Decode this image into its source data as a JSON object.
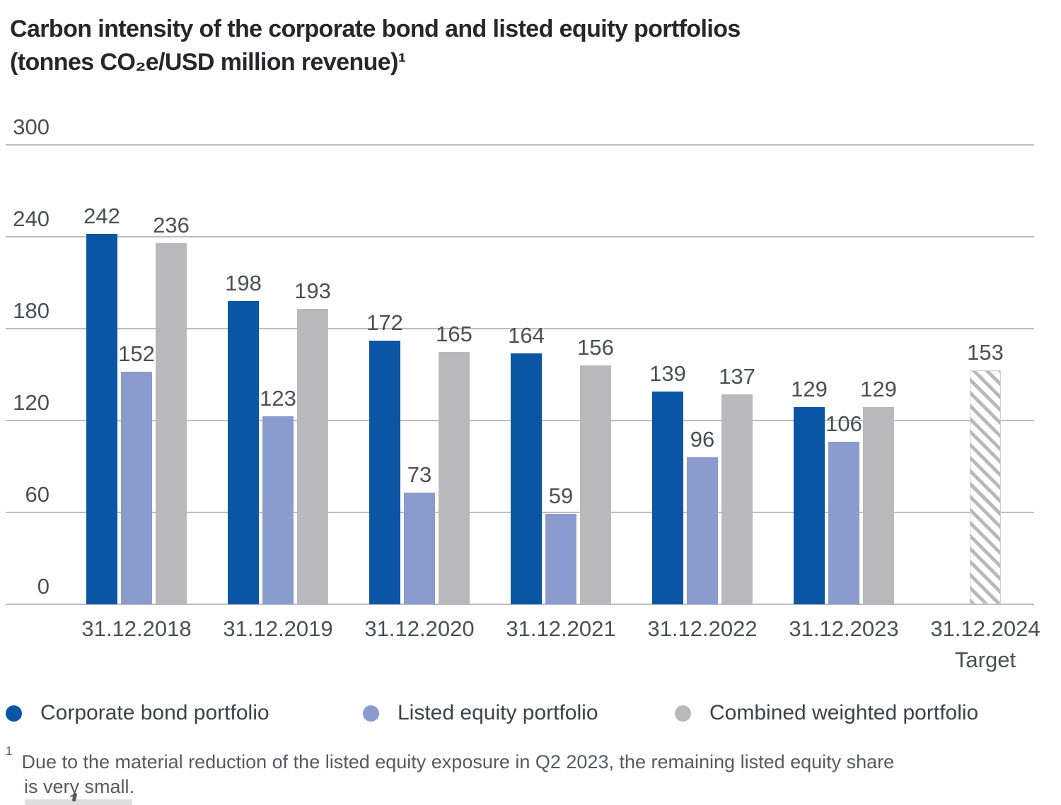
{
  "title": {
    "line1": "Carbon intensity of the corporate bond and listed equity portfolios",
    "line2": "(tonnes CO₂e/USD million revenue)¹"
  },
  "chart_data": {
    "type": "bar",
    "title": "Carbon intensity of the corporate bond and listed equity portfolios",
    "unit_label": "(tonnes CO₂e/USD million revenue)",
    "categories": [
      "31.12.2018",
      "31.12.2019",
      "31.12.2020",
      "31.12.2021",
      "31.12.2022",
      "31.12.2023",
      "31.12.2024"
    ],
    "category_sublabels": [
      "",
      "",
      "",
      "",
      "",
      "",
      "Target"
    ],
    "series": [
      {
        "name": "Corporate bond portfolio",
        "color": "#0b56a4",
        "values": [
          242,
          198,
          172,
          164,
          139,
          129
        ]
      },
      {
        "name": "Listed equity portfolio",
        "color": "#8a9cce",
        "values": [
          152,
          123,
          73,
          59,
          96,
          106
        ]
      },
      {
        "name": "Combined weighted portfolio",
        "color": "#b9b9bc",
        "values": [
          236,
          193,
          165,
          156,
          137,
          129
        ]
      }
    ],
    "target_bar": {
      "category": "31.12.2024",
      "label": "Target",
      "value": 153,
      "style": "hatched-gray-diagonal"
    },
    "yticks": [
      0,
      60,
      120,
      180,
      240,
      300
    ],
    "ylim": [
      0,
      300
    ],
    "grid": true,
    "legend_position": "bottom"
  },
  "legend": {
    "items": [
      {
        "label": "Corporate bond portfolio",
        "color": "#0b56a4"
      },
      {
        "label": "Listed equity portfolio",
        "color": "#8a9cce"
      },
      {
        "label": "Combined weighted portfolio",
        "color": "#b9b9bc"
      }
    ]
  },
  "footnote": {
    "superscript": "1",
    "line1": "Due to the material reduction of the listed equity exposure in Q2 2023, the remaining listed equity share",
    "line2": "is very small."
  }
}
